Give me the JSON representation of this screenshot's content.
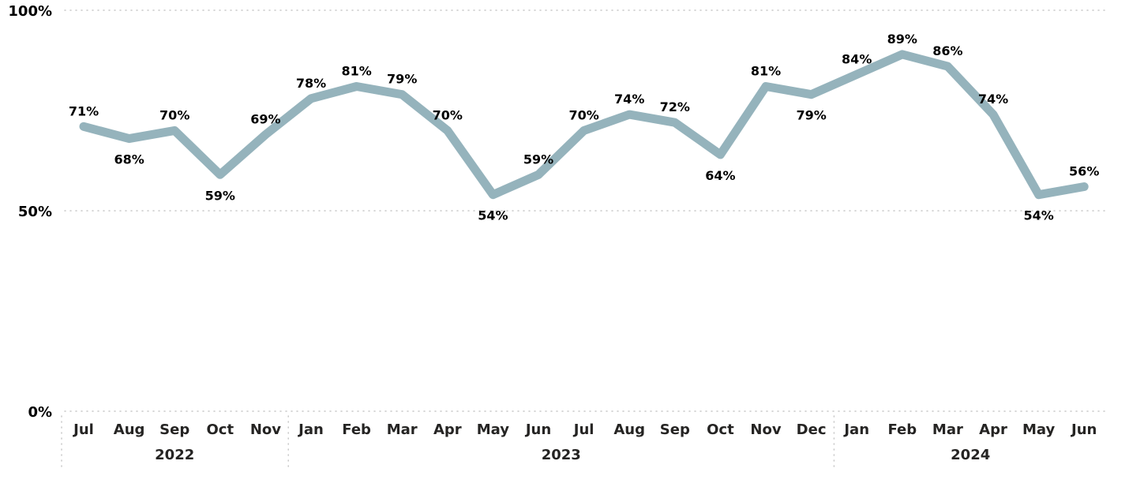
{
  "chart_data": {
    "type": "line",
    "title": "",
    "xlabel": "",
    "ylabel": "",
    "ylim": [
      0,
      100
    ],
    "yticks": [
      "0%",
      "50%",
      "100%"
    ],
    "ytick_values": [
      0,
      50,
      100
    ],
    "categories": [
      "Jul",
      "Aug",
      "Sep",
      "Oct",
      "Nov",
      "Jan",
      "Feb",
      "Mar",
      "Apr",
      "May",
      "Jun",
      "Jul",
      "Aug",
      "Sep",
      "Oct",
      "Nov",
      "Dec",
      "Jan",
      "Feb",
      "Mar",
      "Apr",
      "May",
      "Jun"
    ],
    "years": [
      {
        "label": "2022",
        "start": 0,
        "end": 4
      },
      {
        "label": "2023",
        "start": 5,
        "end": 16
      },
      {
        "label": "2024",
        "start": 17,
        "end": 22
      }
    ],
    "series": [
      {
        "values": [
          71,
          68,
          70,
          59,
          69,
          78,
          81,
          79,
          70,
          54,
          59,
          70,
          74,
          72,
          64,
          81,
          79,
          84,
          89,
          86,
          74,
          54,
          56
        ],
        "labels": [
          "71%",
          "68%",
          "70%",
          "59%",
          "69%",
          "78%",
          "81%",
          "79%",
          "70%",
          "54%",
          "59%",
          "70%",
          "74%",
          "72%",
          "64%",
          "81%",
          "79%",
          "84%",
          "89%",
          "86%",
          "74%",
          "54%",
          "56%"
        ],
        "color": "#95b3bc"
      }
    ],
    "grid": true,
    "legend": "none"
  }
}
